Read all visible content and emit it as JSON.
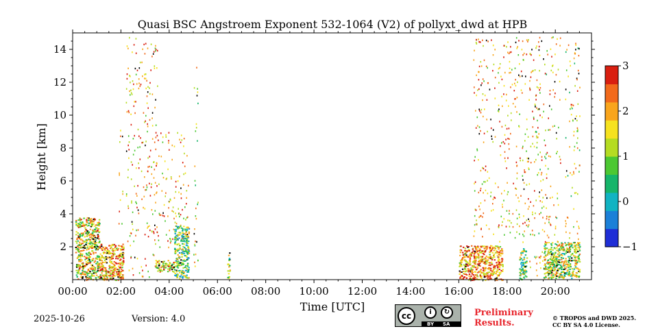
{
  "chart_data": {
    "type": "heatmap",
    "title": "Quasi BSC Angstroem Exponent 532-1064 (V2) of pollyxt_dwd at HPB",
    "xlabel": "Time [UTC]",
    "ylabel": "Height [km]",
    "x_ticks": [
      "00:00",
      "02:00",
      "04:00",
      "06:00",
      "08:00",
      "10:00",
      "12:00",
      "14:00",
      "16:00",
      "18:00",
      "20:00"
    ],
    "xlim_hours": [
      0,
      21.5
    ],
    "y_ticks": [
      2,
      4,
      6,
      8,
      10,
      12,
      14
    ],
    "ylim_km": [
      0,
      15
    ],
    "colorbar": {
      "ticks": [
        -1,
        0,
        1,
        2,
        3
      ],
      "range": [
        -1,
        3
      ],
      "colors": [
        "#1f2ed6",
        "#1c80d8",
        "#11b3c2",
        "#16b56a",
        "#4cc832",
        "#b5dc22",
        "#f6e21f",
        "#f9a51c",
        "#f26a1b",
        "#d91f10"
      ]
    },
    "segments": [
      {
        "t": [
          0.1,
          1.1
        ],
        "h": [
          0.0,
          3.8
        ],
        "v": 1.5
      },
      {
        "t": [
          1.1,
          2.1
        ],
        "h": [
          0.0,
          2.2
        ],
        "v": 2.0
      },
      {
        "t": [
          1.9,
          2.1
        ],
        "h": [
          0.5,
          9.5
        ],
        "v": 1.8
      },
      {
        "t": [
          2.2,
          3.5
        ],
        "h": [
          0.2,
          14.8
        ],
        "v": 1.9
      },
      {
        "t": [
          3.4,
          4.2
        ],
        "h": [
          0.5,
          1.2
        ],
        "v": 1.6
      },
      {
        "t": [
          3.4,
          4.8
        ],
        "h": [
          2.0,
          9.0
        ],
        "v": 1.8
      },
      {
        "t": [
          4.2,
          4.8
        ],
        "h": [
          0.1,
          3.3
        ],
        "v": 0.8
      },
      {
        "t": [
          5.0,
          5.2
        ],
        "h": [
          0.7,
          13.5
        ],
        "v": 1.5
      },
      {
        "t": [
          6.4,
          6.5
        ],
        "h": [
          0.1,
          1.7
        ],
        "v": 1.2
      },
      {
        "t": [
          16.0,
          17.8
        ],
        "h": [
          0.0,
          2.1
        ],
        "v": 2.1
      },
      {
        "t": [
          16.6,
          17.5
        ],
        "h": [
          2.5,
          14.8
        ],
        "v": 2.0
      },
      {
        "t": [
          17.6,
          18.9
        ],
        "h": [
          2.2,
          14.8
        ],
        "v": 1.8
      },
      {
        "t": [
          18.5,
          18.8
        ],
        "h": [
          0.0,
          2.0
        ],
        "v": 0.9
      },
      {
        "t": [
          18.9,
          20.2
        ],
        "h": [
          0.2,
          14.8
        ],
        "v": 1.7
      },
      {
        "t": [
          19.5,
          21.0
        ],
        "h": [
          0.1,
          2.3
        ],
        "v": 1.2
      },
      {
        "t": [
          20.4,
          21.0
        ],
        "h": [
          0.8,
          14.5
        ],
        "v": 1.6
      }
    ]
  },
  "footer": {
    "date": "2025-10-26",
    "version": "Version: 4.0",
    "preliminary_line1": "Preliminary",
    "preliminary_line2": "Results.",
    "copyright_line1": "© TROPOS and DWD 2025.",
    "copyright_line2": "CC BY SA 4.0 License.",
    "license_by": "BY",
    "license_sa": "SA"
  },
  "colors": {
    "frame": "#000000",
    "prelim_text": "#e8262d",
    "badge_bg": "#aab2ab"
  }
}
